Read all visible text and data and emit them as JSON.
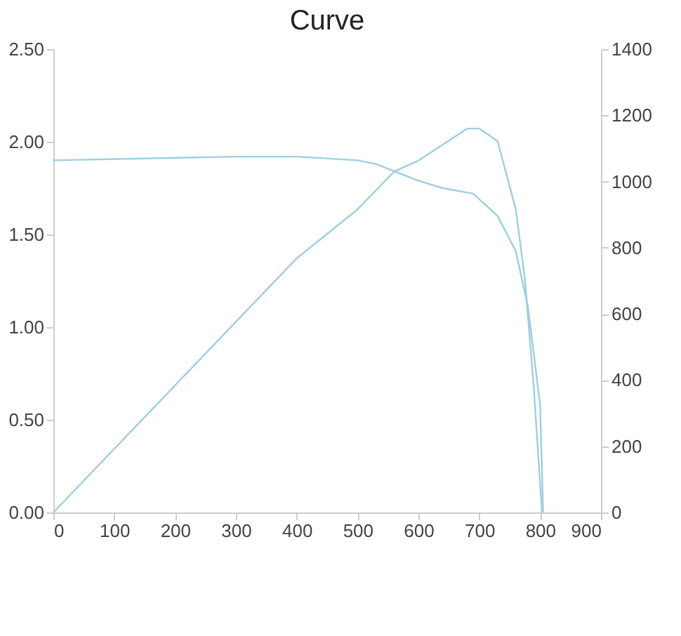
{
  "chart_data": {
    "type": "line",
    "title": "Curve",
    "xlim": [
      0,
      900
    ],
    "xticks": [
      0,
      100,
      200,
      300,
      400,
      500,
      600,
      700,
      800,
      900
    ],
    "ylim": [
      0,
      2.5
    ],
    "yticks": [
      {
        "value": 0,
        "label": "0.00"
      },
      {
        "value": 0.5,
        "label": "0.50"
      },
      {
        "value": 1,
        "label": "1.00"
      },
      {
        "value": 1.5,
        "label": "1.50"
      },
      {
        "value": 2,
        "label": "2.00"
      },
      {
        "value": 2.5,
        "label": "2.50"
      }
    ],
    "y2lim": [
      0,
      1400
    ],
    "y2ticks": [
      0,
      200,
      400,
      600,
      800,
      1000,
      1200,
      1400
    ],
    "grid": false,
    "marker": "none",
    "line_style": "solid",
    "series": [
      {
        "color": "#9ccfe0",
        "x": [
          0,
          300,
          400,
          500,
          530,
          600,
          640,
          690,
          730,
          760,
          780,
          800,
          805
        ],
        "values": [
          1.9,
          1.92,
          1.92,
          1.9,
          1.88,
          1.79,
          1.75,
          1.72,
          1.6,
          1.41,
          1.11,
          0.58,
          0
        ]
      },
      {
        "color": "#9ccfe0",
        "axis": "y2",
        "x": [
          0,
          400,
          500,
          560,
          600,
          680,
          700,
          730,
          760,
          775,
          790,
          803
        ],
        "values": [
          0,
          768,
          916,
          1030,
          1063,
          1160,
          1160,
          1122,
          916,
          705,
          367,
          0
        ]
      }
    ]
  }
}
